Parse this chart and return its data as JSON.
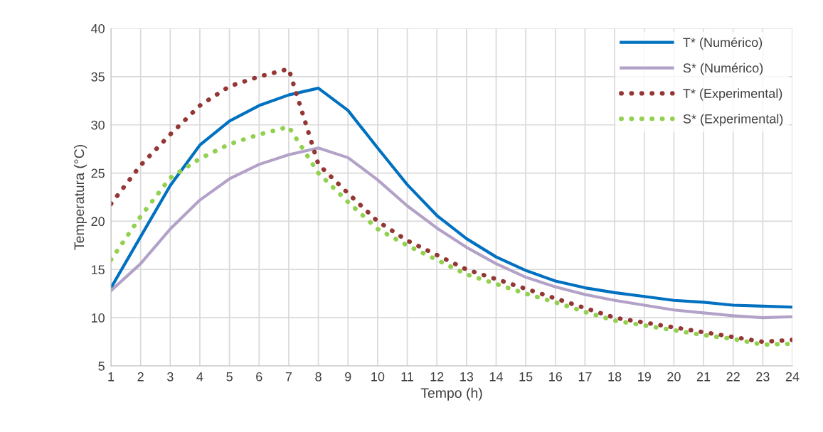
{
  "chart_data": {
    "type": "line",
    "xlabel": "Tempo (h)",
    "ylabel": "Temperatura (°C)",
    "categories": [
      "1",
      "2",
      "3",
      "4",
      "5",
      "6",
      "7",
      "8",
      "9",
      "10",
      "11",
      "12",
      "13",
      "14",
      "15",
      "16",
      "17",
      "18",
      "19",
      "20",
      "21",
      "22",
      "23",
      "24"
    ],
    "ylim": [
      5,
      40
    ],
    "yticks": [
      5,
      10,
      15,
      20,
      25,
      30,
      35,
      40
    ],
    "grid": true,
    "legend": "top right",
    "series": [
      {
        "name": "T* (Numérico)",
        "color": "#0070c0",
        "line_style": "solid",
        "values": [
          13.1,
          18.4,
          23.7,
          27.9,
          30.4,
          32.0,
          33.1,
          33.8,
          31.5,
          27.6,
          23.8,
          20.6,
          18.2,
          16.3,
          14.9,
          13.8,
          13.1,
          12.6,
          12.2,
          11.8,
          11.6,
          11.3,
          11.2,
          11.1
        ]
      },
      {
        "name": "S* (Numérico)",
        "color": "#b3a2c7",
        "line_style": "solid",
        "values": [
          12.8,
          15.6,
          19.2,
          22.2,
          24.4,
          25.9,
          26.9,
          27.6,
          26.6,
          24.3,
          21.6,
          19.3,
          17.3,
          15.6,
          14.2,
          13.2,
          12.4,
          11.8,
          11.3,
          10.8,
          10.5,
          10.2,
          10.0,
          10.1
        ]
      },
      {
        "name": "T* (Experimental)",
        "color": "#943634",
        "line_style": "dotted",
        "values": [
          21.8,
          25.8,
          29.0,
          32.0,
          34.0,
          35.0,
          35.8,
          25.9,
          22.9,
          20.0,
          18.0,
          16.5,
          15.0,
          14.0,
          13.0,
          12.0,
          11.0,
          10.0,
          9.5,
          9.0,
          8.5,
          8.0,
          7.5,
          7.7
        ]
      },
      {
        "name": "S* (Experimental)",
        "color": "#92d050",
        "line_style": "dotted",
        "values": [
          16.0,
          20.5,
          24.5,
          26.5,
          28.0,
          29.0,
          29.8,
          25.0,
          22.0,
          19.2,
          17.5,
          16.0,
          14.5,
          13.5,
          12.5,
          11.6,
          10.6,
          9.7,
          9.2,
          8.7,
          8.2,
          7.8,
          7.2,
          7.3
        ]
      }
    ]
  }
}
